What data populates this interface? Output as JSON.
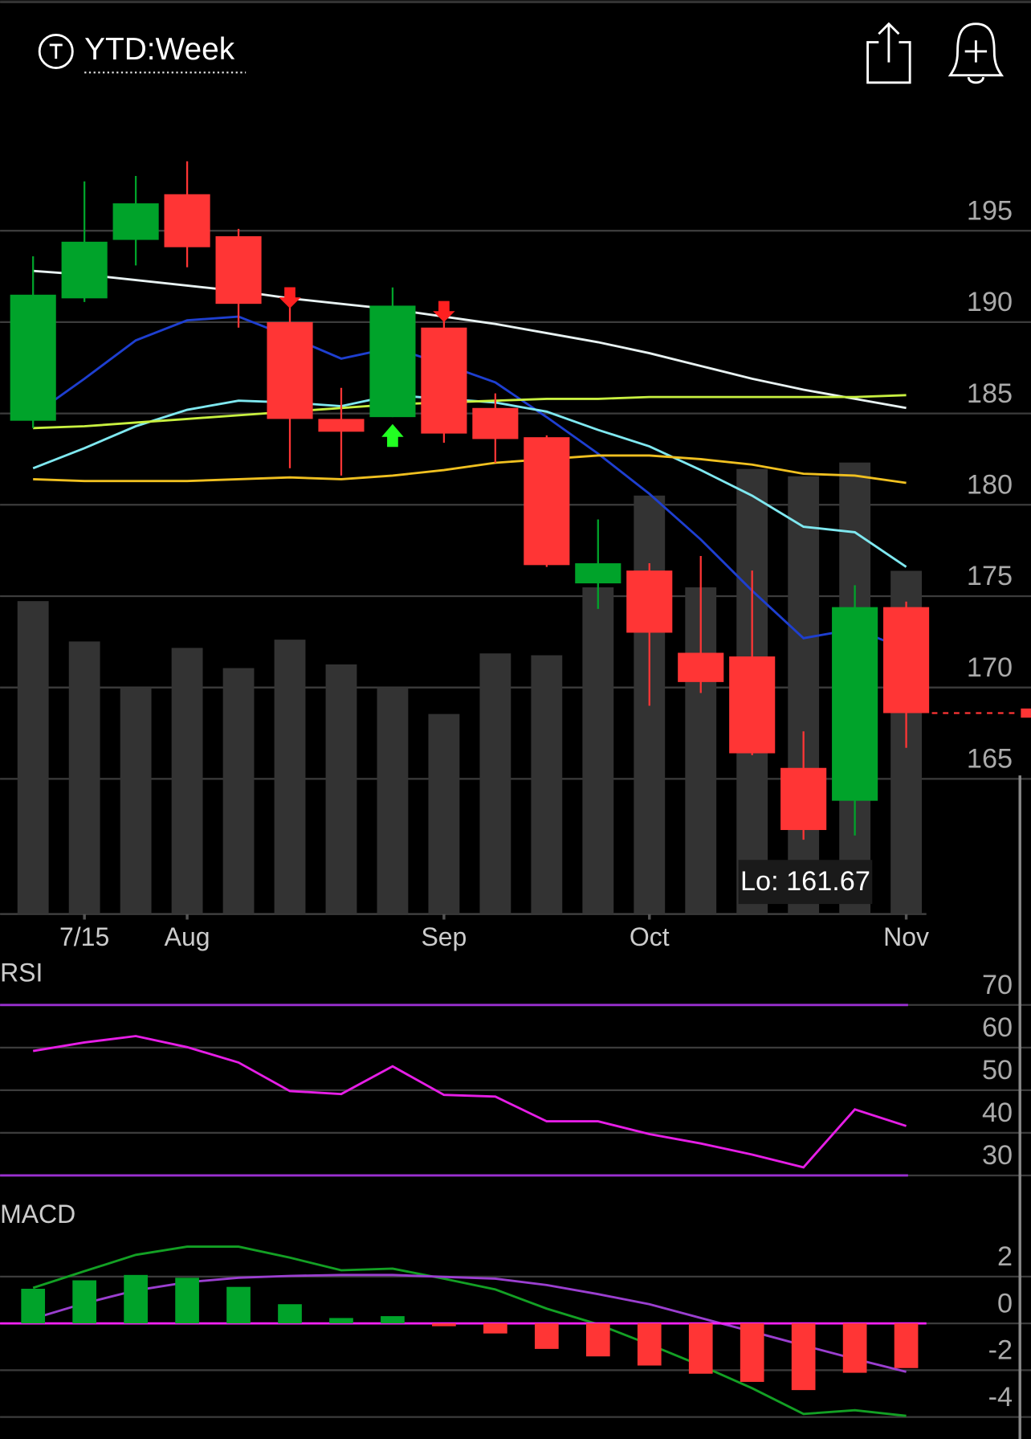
{
  "header": {
    "title": "YTD:Week"
  },
  "chart_data": [
    {
      "type": "candlestick",
      "categories": [
        null,
        "7/15",
        null,
        "Aug",
        null,
        null,
        null,
        null,
        "Sep",
        null,
        null,
        null,
        "Oct",
        null,
        null,
        null,
        null,
        "Nov"
      ],
      "open": [
        184.6,
        191.3,
        194.5,
        197.0,
        194.7,
        190.0,
        184.7,
        184.8,
        189.7,
        185.3,
        183.7,
        175.7,
        176.4,
        171.9,
        171.7,
        165.6,
        163.8,
        174.4
      ],
      "high": [
        193.6,
        197.7,
        198.0,
        198.8,
        195.1,
        190.9,
        186.4,
        191.9,
        190.6,
        186.1,
        183.8,
        179.2,
        176.8,
        177.2,
        176.4,
        167.6,
        175.6,
        174.7
      ],
      "low": [
        184.2,
        191.1,
        193.1,
        193.0,
        189.7,
        182.0,
        181.6,
        184.8,
        183.4,
        182.3,
        176.6,
        174.3,
        169.0,
        169.7,
        166.3,
        161.67,
        161.9,
        166.7
      ],
      "close": [
        191.5,
        194.4,
        196.5,
        194.1,
        191.0,
        184.7,
        184.0,
        190.9,
        183.9,
        183.6,
        176.7,
        176.8,
        173.0,
        170.3,
        166.4,
        162.2,
        174.4,
        168.6
      ],
      "up_color": "#00a32a",
      "down_color": "#ff3535",
      "volume": [
        341,
        297,
        247,
        290,
        268,
        299,
        272,
        247,
        218,
        284,
        282,
        356,
        456,
        356,
        485,
        477,
        492,
        374
      ],
      "volume_color": "#333333",
      "series": [
        {
          "color": "#1e3fd0",
          "values": [
            184.9,
            186.9,
            189.0,
            190.1,
            190.3,
            189.2,
            188.0,
            188.6,
            187.7,
            186.7,
            184.8,
            182.8,
            180.6,
            178.1,
            175.3,
            172.7,
            173.2,
            172.1
          ]
        },
        {
          "color": "#7fe8f0",
          "values": [
            182.0,
            183.1,
            184.3,
            185.2,
            185.7,
            185.6,
            185.4,
            186.0,
            185.8,
            185.6,
            185.1,
            184.1,
            183.2,
            181.9,
            180.5,
            178.8,
            178.5,
            176.6
          ]
        },
        {
          "color": "#e8f2f2",
          "values": [
            192.8,
            192.6,
            192.3,
            192.0,
            191.7,
            191.3,
            191.0,
            190.7,
            190.3,
            189.9,
            189.4,
            188.9,
            188.3,
            187.6,
            186.9,
            186.3,
            185.8,
            185.3
          ]
        },
        {
          "color": "#c8f040",
          "values": [
            184.2,
            184.3,
            184.5,
            184.7,
            184.9,
            185.1,
            185.3,
            185.5,
            185.6,
            185.7,
            185.8,
            185.8,
            185.9,
            185.9,
            185.9,
            185.9,
            185.9,
            186.0
          ]
        },
        {
          "color": "#f0c020",
          "values": [
            181.4,
            181.3,
            181.3,
            181.3,
            181.4,
            181.5,
            181.4,
            181.6,
            181.9,
            182.3,
            182.5,
            182.7,
            182.7,
            182.5,
            182.2,
            181.7,
            181.6,
            181.2
          ]
        }
      ],
      "ylim": [
        157.6,
        201.1
      ],
      "yticks": [
        165,
        170,
        175,
        180,
        185,
        190,
        195
      ],
      "annotation": "Lo: 161.67"
    },
    {
      "type": "line",
      "title": "RSI",
      "series": [
        {
          "color": "#e61ee6",
          "values": [
            59.2,
            61.2,
            62.7,
            60.1,
            56.5,
            49.8,
            49.1,
            55.6,
            48.9,
            48.5,
            42.7,
            42.7,
            39.7,
            37.5,
            34.9,
            31.9,
            45.5,
            41.6
          ]
        }
      ],
      "bands": [
        70,
        30
      ],
      "band_color": "#9a30d0",
      "ylim": [
        26.3,
        79.7
      ],
      "yticks": [
        30,
        40,
        50,
        60,
        70
      ]
    },
    {
      "type": "macd",
      "title": "MACD",
      "histogram": [
        1.48,
        1.84,
        2.07,
        1.95,
        1.56,
        0.82,
        0.23,
        0.31,
        -0.12,
        -0.43,
        -1.09,
        -1.41,
        -1.8,
        -2.15,
        -2.5,
        -2.85,
        -2.11,
        -1.91
      ],
      "up_color": "#00a32a",
      "down_color": "#ff3535",
      "series": [
        {
          "color": "#13a024",
          "values": [
            1.52,
            2.23,
            2.93,
            3.28,
            3.28,
            2.81,
            2.27,
            2.34,
            1.91,
            1.45,
            0.63,
            -0.04,
            -0.9,
            -1.8,
            -2.77,
            -3.87,
            -3.71,
            -3.95
          ]
        },
        {
          "color": "#9b3fd0",
          "values": [
            0.2,
            0.86,
            1.41,
            1.76,
            1.95,
            2.03,
            2.07,
            2.07,
            1.99,
            1.91,
            1.64,
            1.25,
            0.82,
            0.23,
            -0.35,
            -0.94,
            -1.52,
            -2.07
          ]
        }
      ],
      "zero_color": "#ff22ff",
      "ylim": [
        -4.94,
        5.57
      ],
      "yticks": [
        -4,
        -2,
        0,
        2
      ]
    }
  ]
}
